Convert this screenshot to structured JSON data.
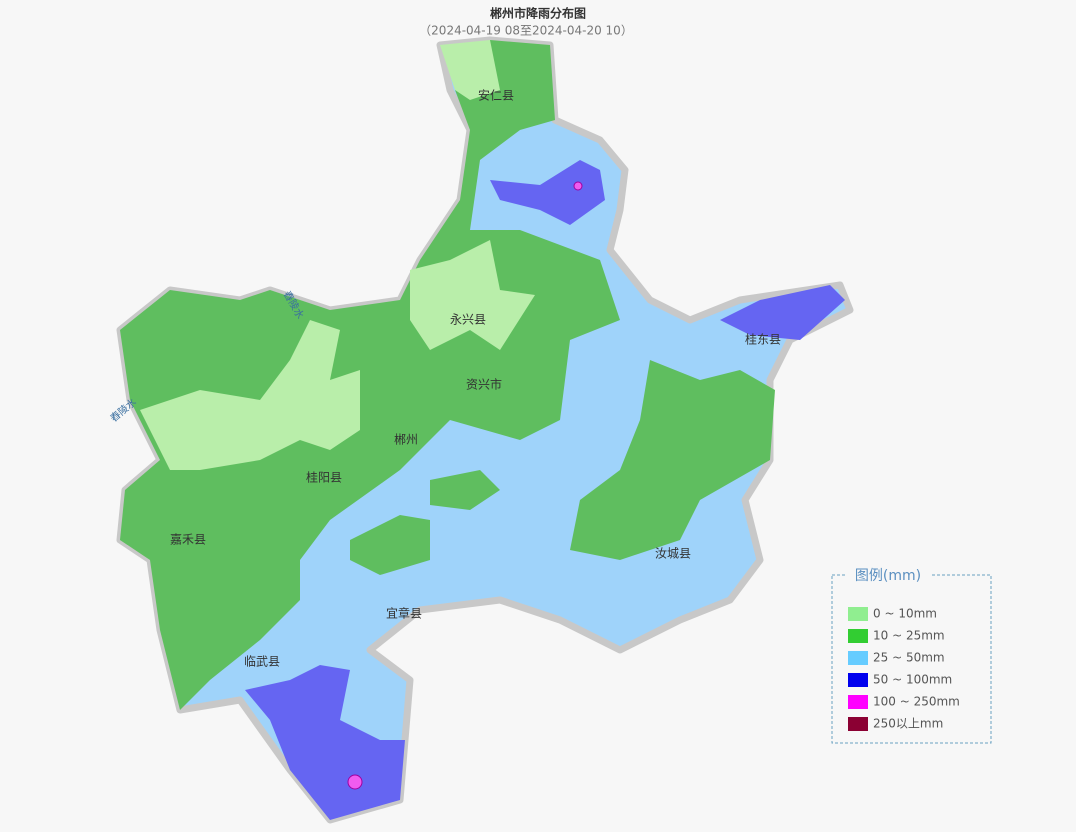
{
  "header": {
    "title": "郴州市降雨分布图",
    "subtitle": "（2024-04-19 08至2024-04-20 10）"
  },
  "legend": {
    "title": "图例(mm)",
    "items": [
      {
        "label": "0 ~ 10mm",
        "color": "#90ee90"
      },
      {
        "label": "10 ~ 25mm",
        "color": "#32cd32"
      },
      {
        "label": "25 ~ 50mm",
        "color": "#66ccff"
      },
      {
        "label": "50 ~ 100mm",
        "color": "#0000ee"
      },
      {
        "label": "100 ~ 250mm",
        "color": "#ff00ff"
      },
      {
        "label": "250以上mm",
        "color": "#8b0033"
      }
    ]
  },
  "places": [
    "安仁县",
    "永兴县",
    "资兴市",
    "郴州",
    "桂阳县",
    "嘉禾县",
    "宜章县",
    "临武县",
    "桂东县",
    "汝城县"
  ],
  "rivers": [
    "舂陵水",
    "舂陵水"
  ]
}
